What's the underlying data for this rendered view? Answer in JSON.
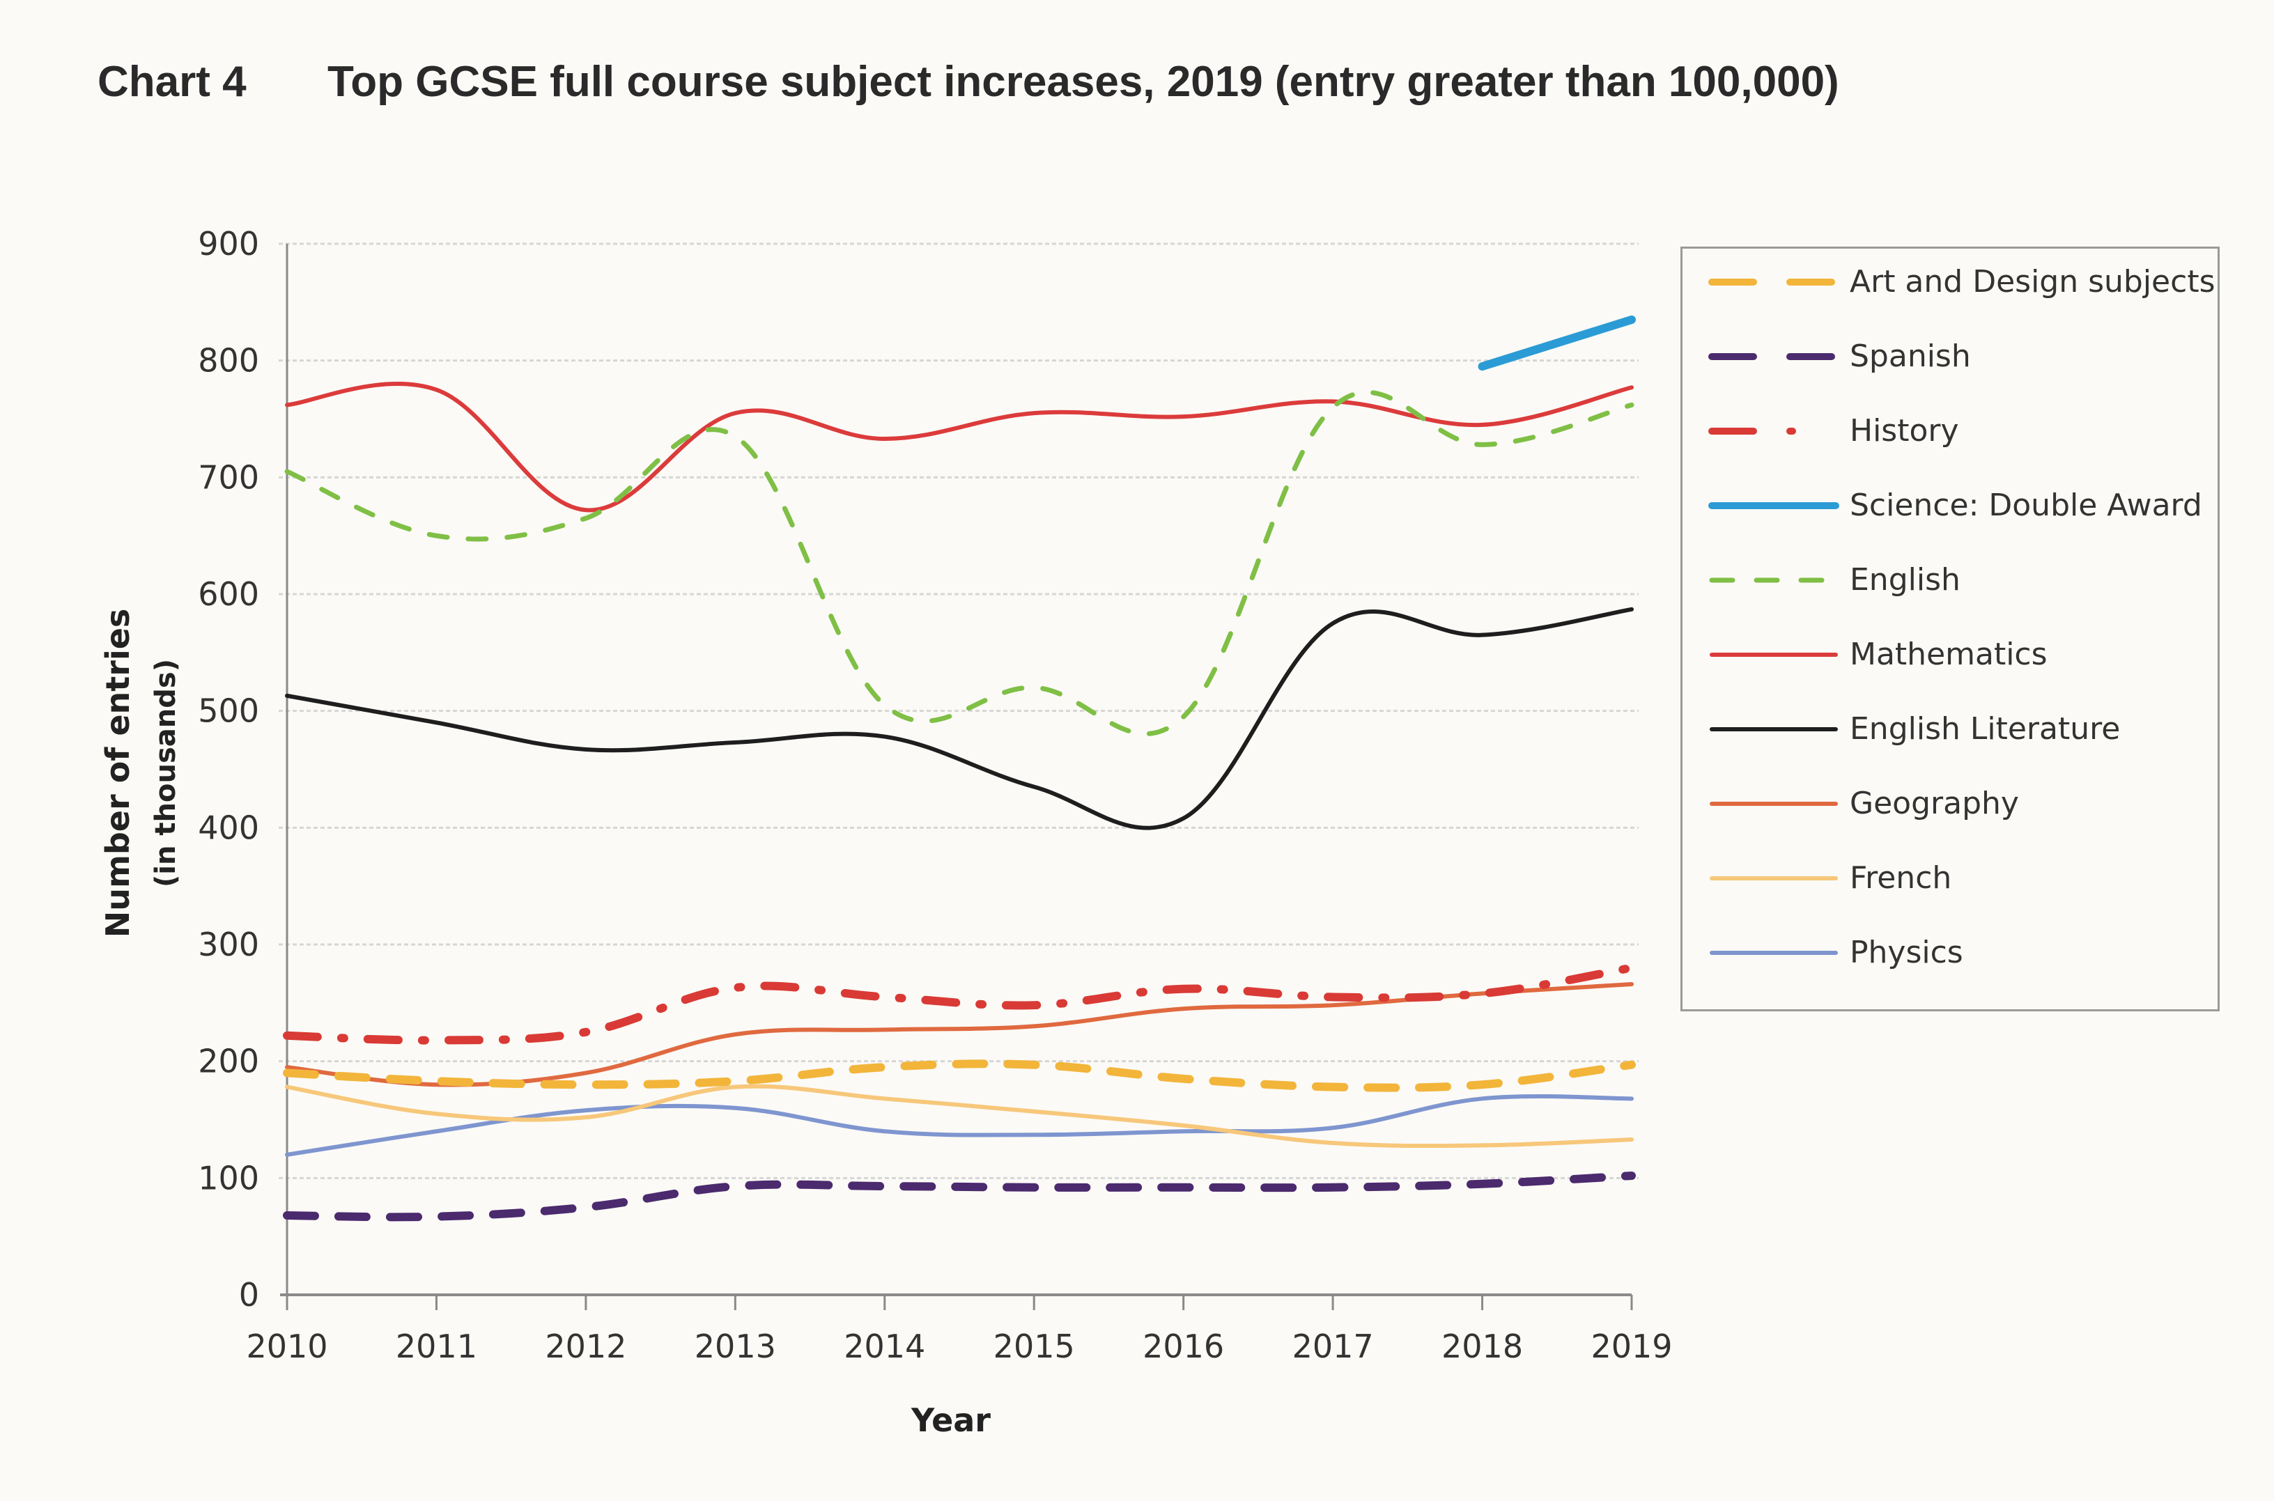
{
  "title": {
    "number": "Chart 4",
    "text": "Top GCSE full course subject increases, 2019 (entry greater than 100,000)"
  },
  "chart_data": {
    "type": "line",
    "title": "Top GCSE full course subject increases, 2019 (entry greater than 100,000)",
    "xlabel": "Year",
    "ylabel": "Number of entries",
    "ylabel_sub": "(in thousands)",
    "x": [
      2010,
      2011,
      2012,
      2013,
      2014,
      2015,
      2016,
      2017,
      2018,
      2019
    ],
    "xticks": [
      "2010",
      "2011",
      "2012",
      "2013",
      "2014",
      "2015",
      "2016",
      "2017",
      "2018",
      "2019"
    ],
    "ylim": [
      0,
      900
    ],
    "yticks": [
      "0",
      "100",
      "200",
      "300",
      "400",
      "500",
      "600",
      "700",
      "800",
      "900"
    ],
    "grid": true,
    "legend_position": "right",
    "series": [
      {
        "name": "Art and Design subjects",
        "color": "#f2b53a",
        "style": "dashed-long",
        "values": [
          190,
          183,
          180,
          183,
          195,
          197,
          185,
          178,
          180,
          197
        ]
      },
      {
        "name": "Spanish",
        "color": "#4b2a6e",
        "style": "dashed-long",
        "values": [
          68,
          67,
          75,
          93,
          93,
          92,
          92,
          92,
          95,
          102
        ]
      },
      {
        "name": "History",
        "color": "#d93a35",
        "style": "dash-dot",
        "values": [
          222,
          218,
          225,
          263,
          255,
          248,
          262,
          255,
          258,
          280
        ]
      },
      {
        "name": "Science: Double Award",
        "color": "#2b9bd6",
        "style": "solid-thick",
        "values": [
          null,
          null,
          null,
          null,
          null,
          null,
          null,
          null,
          795,
          835
        ]
      },
      {
        "name": "English",
        "color": "#7fbf45",
        "style": "dashed-short",
        "values": [
          705,
          650,
          665,
          735,
          505,
          520,
          495,
          760,
          728,
          762
        ]
      },
      {
        "name": "Mathematics",
        "color": "#dc3b3b",
        "style": "solid",
        "values": [
          762,
          775,
          672,
          755,
          733,
          755,
          752,
          765,
          745,
          777
        ]
      },
      {
        "name": "English Literature",
        "color": "#1e1e1e",
        "style": "solid",
        "values": [
          513,
          490,
          467,
          473,
          478,
          435,
          408,
          575,
          565,
          587
        ]
      },
      {
        "name": "Geography",
        "color": "#e0693f",
        "style": "solid",
        "values": [
          195,
          180,
          190,
          223,
          227,
          230,
          245,
          248,
          258,
          266
        ]
      },
      {
        "name": "French",
        "color": "#f7c77a",
        "style": "solid",
        "values": [
          178,
          155,
          152,
          178,
          168,
          157,
          145,
          130,
          128,
          133
        ]
      },
      {
        "name": "Physics",
        "color": "#7e95cf",
        "style": "solid",
        "values": [
          120,
          140,
          158,
          160,
          140,
          137,
          140,
          143,
          168,
          168
        ]
      }
    ]
  }
}
